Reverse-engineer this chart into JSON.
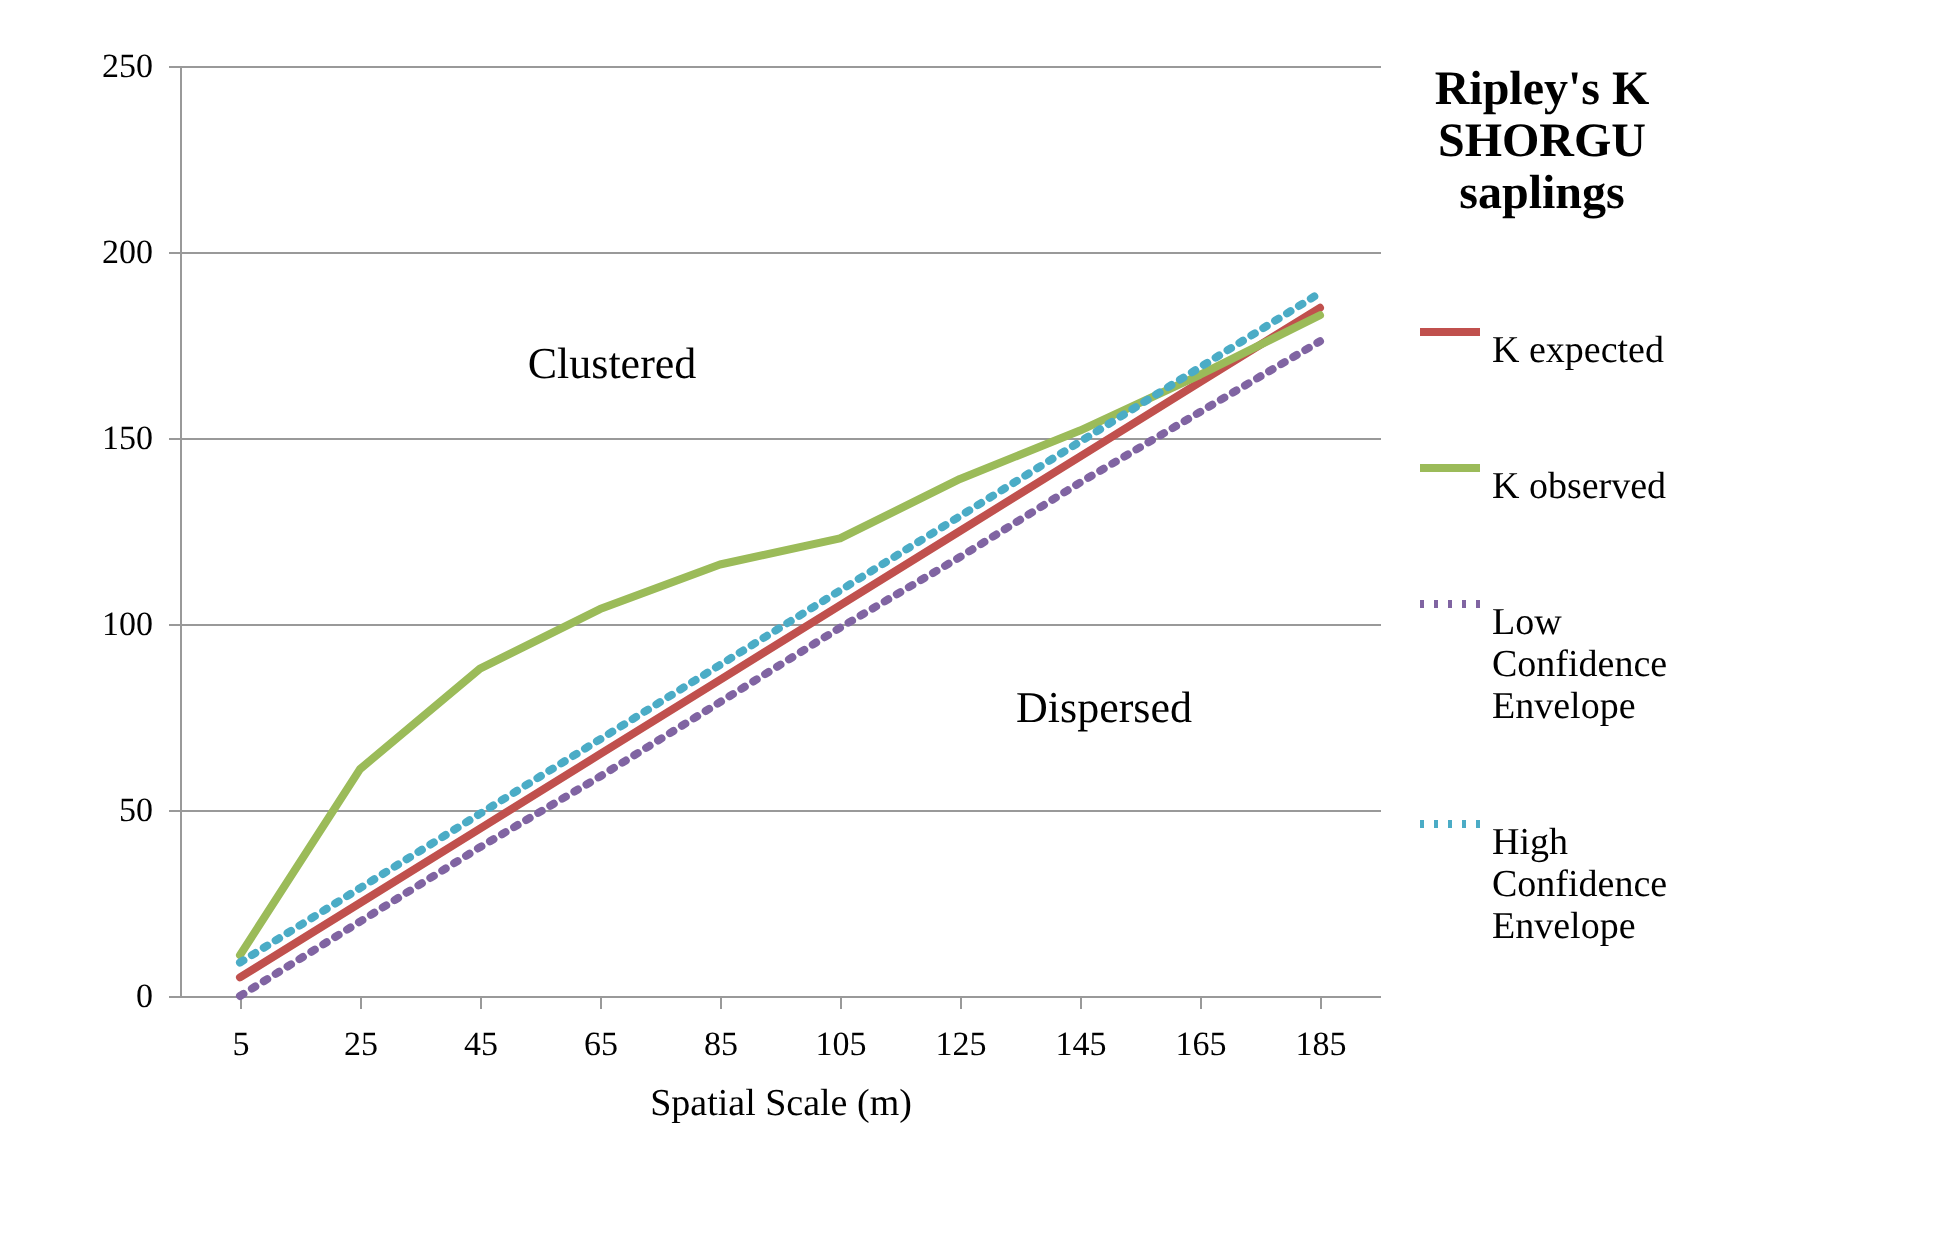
{
  "chart_data": {
    "type": "line",
    "title": "Ripley's K SHORGU saplings",
    "xlabel": "Spatial Scale (m)",
    "categories": [
      "5",
      "25",
      "45",
      "65",
      "85",
      "105",
      "125",
      "145",
      "165",
      "185"
    ],
    "series": [
      {
        "name": "K expected",
        "color": "#c0504d",
        "line_style": "solid",
        "values": [
          5,
          25,
          45,
          65,
          85,
          105,
          125,
          145,
          165,
          185
        ]
      },
      {
        "name": "K observed",
        "color": "#9bbb59",
        "line_style": "solid",
        "values": [
          11,
          61,
          88,
          104,
          116,
          123,
          139,
          152,
          167,
          183
        ]
      },
      {
        "name": "Low Confidence Envelope",
        "color": "#8064a2",
        "line_style": "dotted",
        "values": [
          0,
          20,
          40,
          59,
          79,
          99,
          118,
          138,
          157,
          176
        ]
      },
      {
        "name": "High Confidence Envelope",
        "color": "#4bacc6",
        "line_style": "dotted",
        "values": [
          9,
          29,
          49,
          69,
          89,
          109,
          129,
          149,
          169,
          189
        ]
      }
    ],
    "ylim": [
      0,
      250
    ],
    "yticks": [
      0,
      50,
      100,
      150,
      200,
      250
    ],
    "grid": "y",
    "legend": "right",
    "marker": "none",
    "annotations": [
      "Clustered",
      "Dispersed"
    ]
  }
}
